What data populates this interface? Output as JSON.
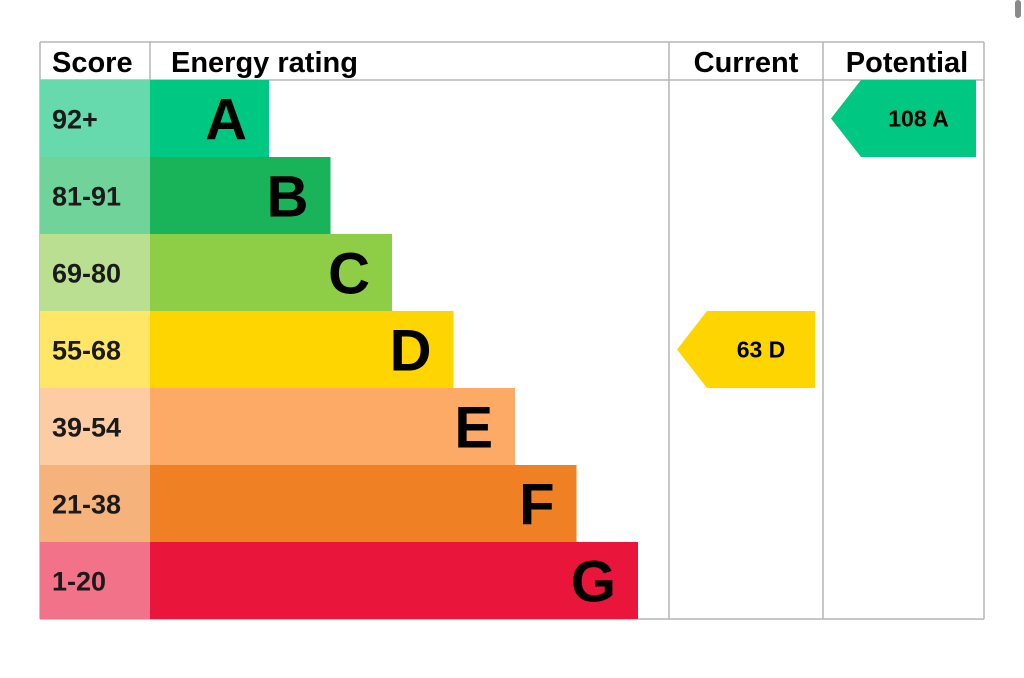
{
  "chart_data": {
    "type": "table",
    "headers": {
      "score": "Score",
      "rating": "Energy rating",
      "current": "Current",
      "potential": "Potential"
    },
    "bands": [
      {
        "score": "92+",
        "letter": "A",
        "color": "#00c781",
        "score_bg": "#66d9ad"
      },
      {
        "score": "81-91",
        "letter": "B",
        "color": "#19b459",
        "score_bg": "#6fd39a"
      },
      {
        "score": "69-80",
        "letter": "C",
        "color": "#8dce46",
        "score_bg": "#badf90"
      },
      {
        "score": "55-68",
        "letter": "D",
        "color": "#ffd500",
        "score_bg": "#ffe666"
      },
      {
        "score": "39-54",
        "letter": "E",
        "color": "#fcaa65",
        "score_bg": "#fdcca3"
      },
      {
        "score": "21-38",
        "letter": "F",
        "color": "#ef8023",
        "score_bg": "#f5b37b"
      },
      {
        "score": "1-20",
        "letter": "G",
        "color": "#e9153b",
        "score_bg": "#f27389"
      }
    ],
    "current": {
      "value": 63,
      "letter": "D",
      "text": "63  D",
      "color": "#ffd500"
    },
    "potential": {
      "value": 108,
      "letter": "A",
      "text": "108  A",
      "color": "#00c781"
    }
  }
}
